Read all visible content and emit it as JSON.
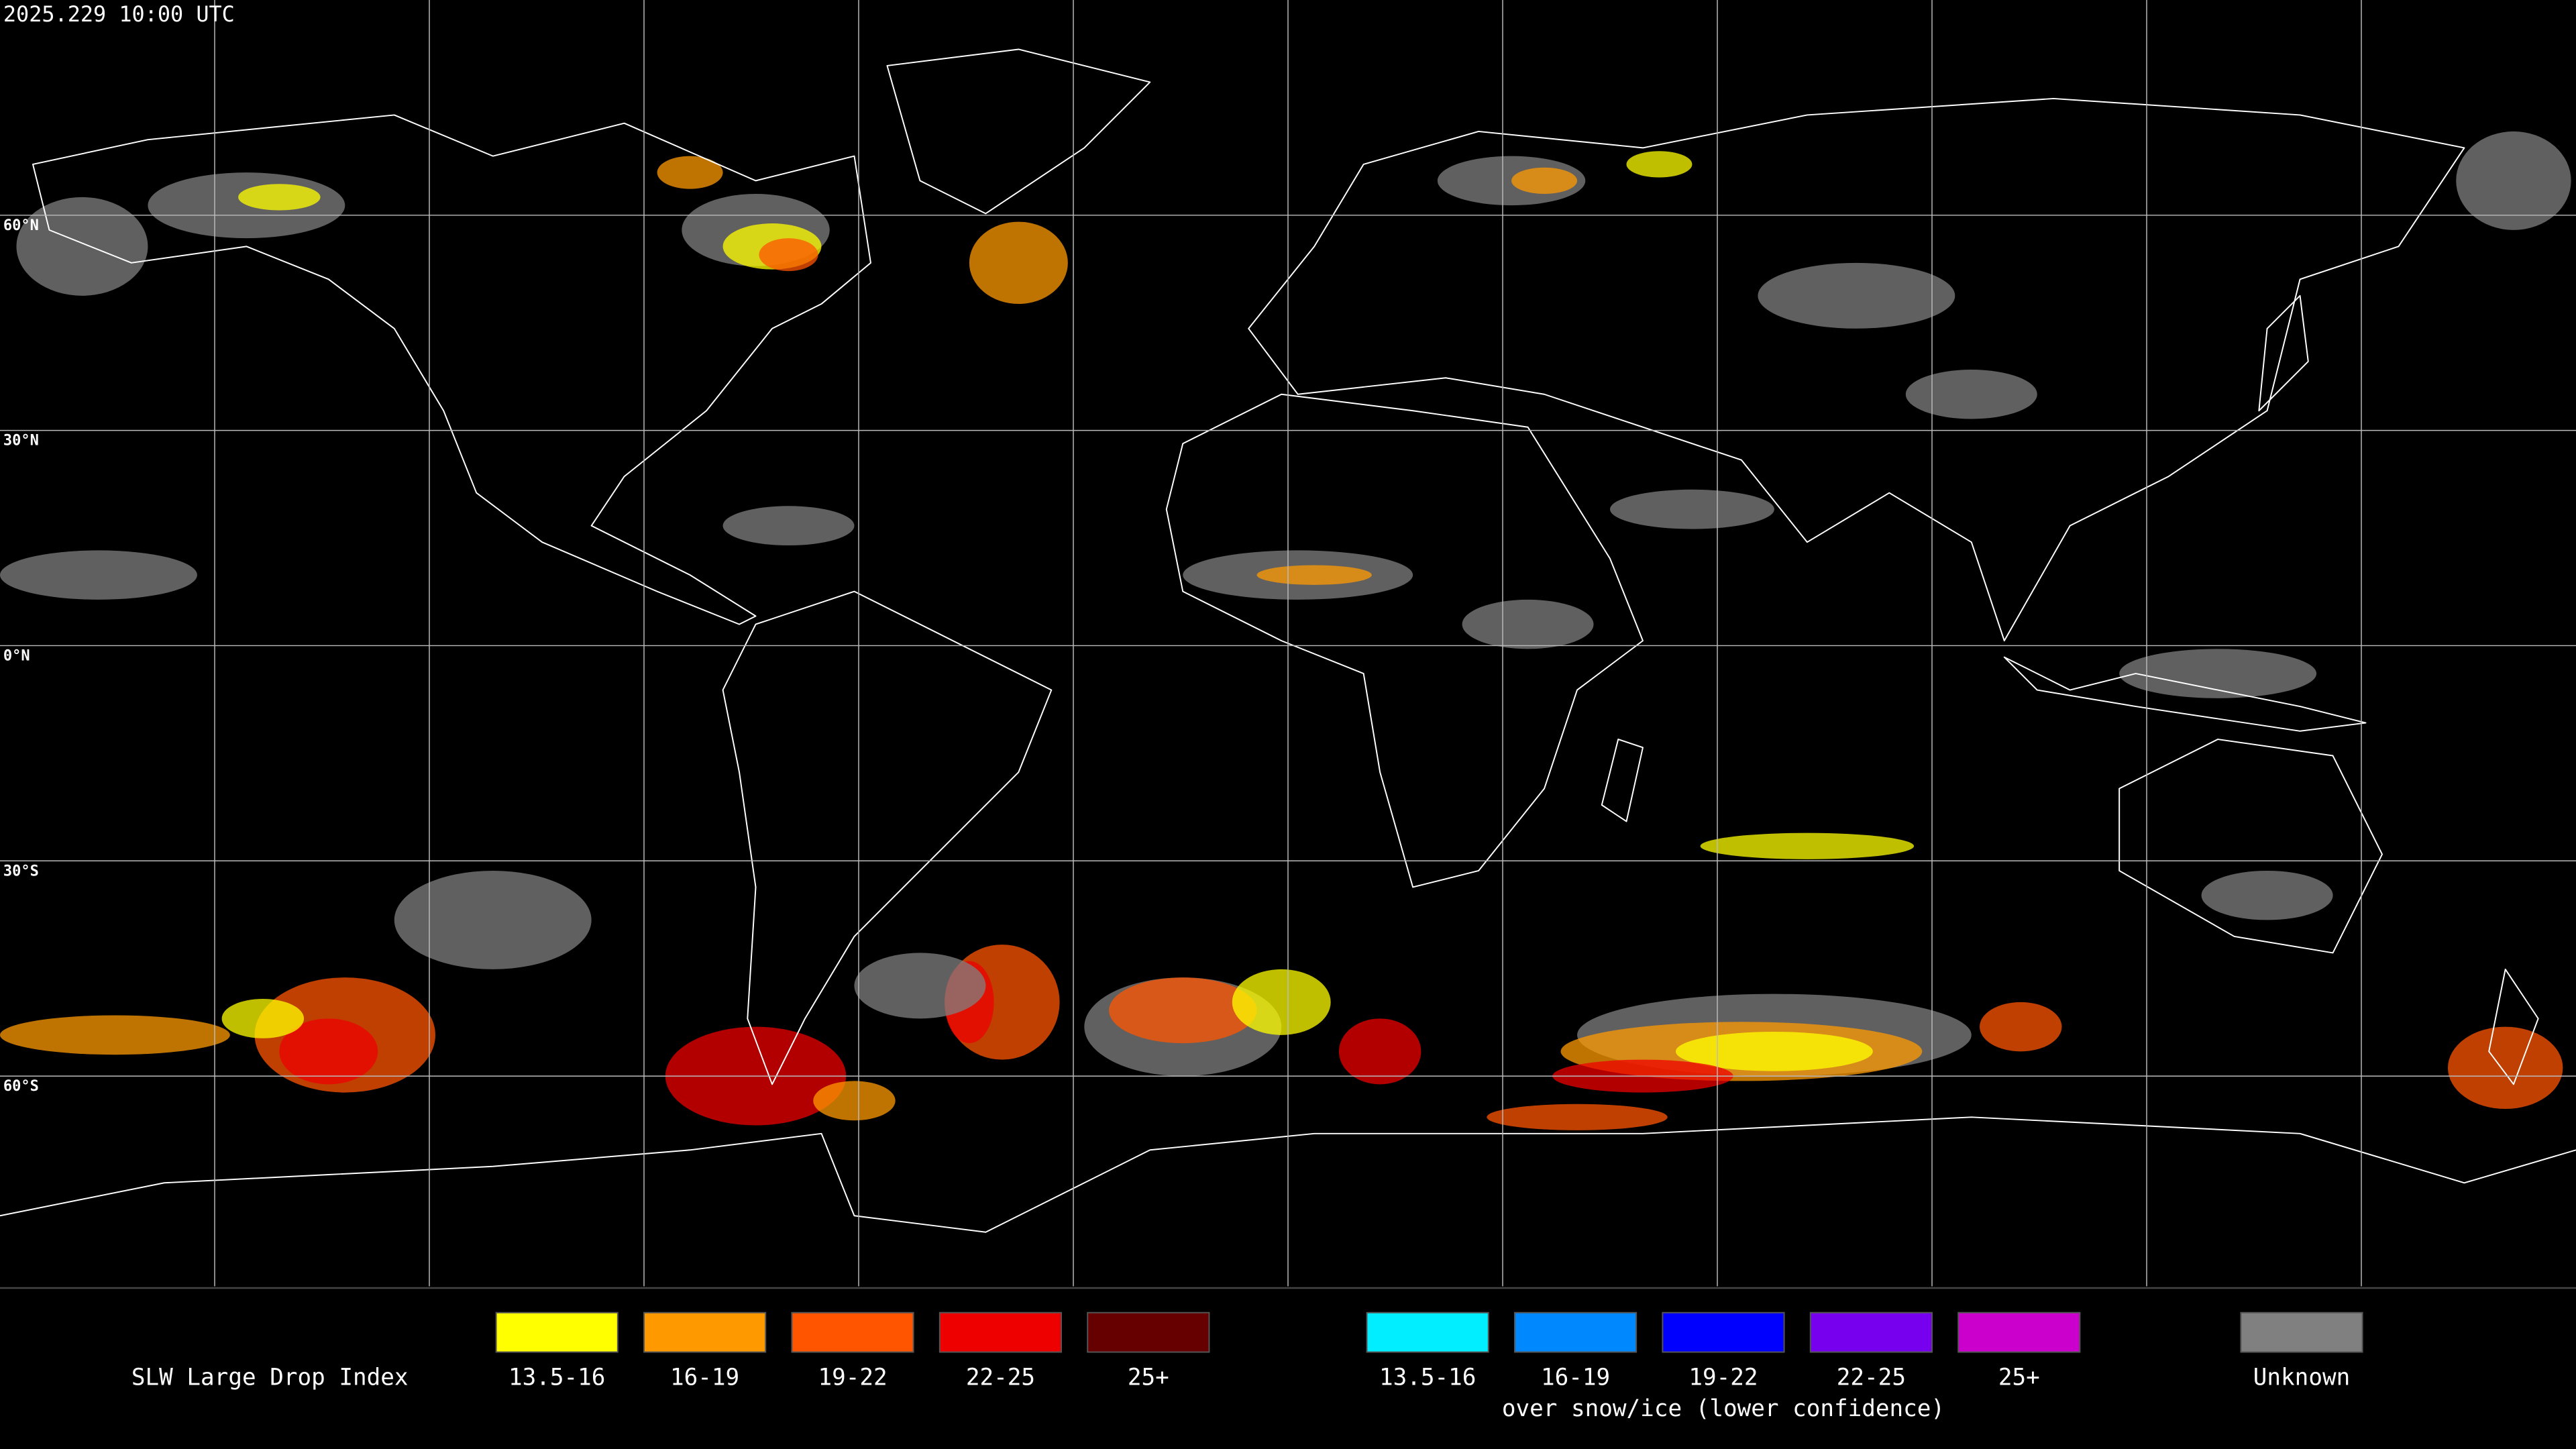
{
  "header": {
    "timestamp": "2025.229 10:00 UTC"
  },
  "map": {
    "latitude_labels": [
      "60°N",
      "30°N",
      "0°N",
      "30°S",
      "60°S"
    ]
  },
  "legend": {
    "title": "SLW Large Drop Index",
    "groups": [
      {
        "items": [
          {
            "label": "13.5-16",
            "color": "#ffff00"
          },
          {
            "label": "16-19",
            "color": "#ff9900"
          },
          {
            "label": "19-22",
            "color": "#ff5500"
          },
          {
            "label": "22-25",
            "color": "#ee0000"
          },
          {
            "label": "25+",
            "color": "#660000"
          }
        ]
      },
      {
        "items": [
          {
            "label": "13.5-16",
            "color": "#00eeff"
          },
          {
            "label": "16-19",
            "color": "#0088ff"
          },
          {
            "label": "19-22",
            "color": "#0000ff"
          },
          {
            "label": "22-25",
            "color": "#7700ee"
          },
          {
            "label": "25+",
            "color": "#cc00cc"
          }
        ],
        "caption": "over snow/ice (lower confidence)"
      }
    ],
    "unknown": {
      "label": "Unknown",
      "color": "#808080"
    }
  }
}
